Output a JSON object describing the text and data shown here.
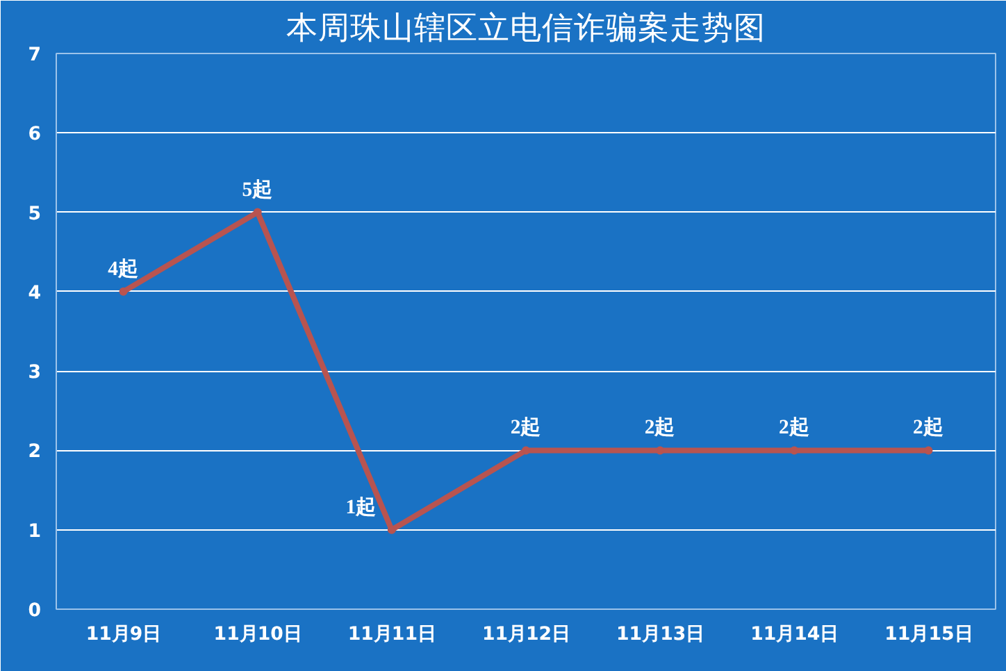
{
  "chart_data": {
    "type": "line",
    "title": "本周珠山辖区立电信诈骗案走势图",
    "categories": [
      "11月9日",
      "11月10日",
      "11月11日",
      "11月12日",
      "11月13日",
      "11月14日",
      "11月15日"
    ],
    "series": [
      {
        "color": "#b85450",
        "values": [
          4,
          5,
          1,
          2,
          2,
          2,
          2
        ],
        "value_labels": [
          "4起",
          "5起",
          "1起",
          "2起",
          "2起",
          "2起",
          "2起"
        ]
      }
    ],
    "ylim": [
      0,
      7
    ],
    "yticks": [
      0,
      1,
      2,
      3,
      4,
      5,
      6,
      7
    ],
    "grid": "y",
    "marker": "circle",
    "line_style": "solid"
  }
}
